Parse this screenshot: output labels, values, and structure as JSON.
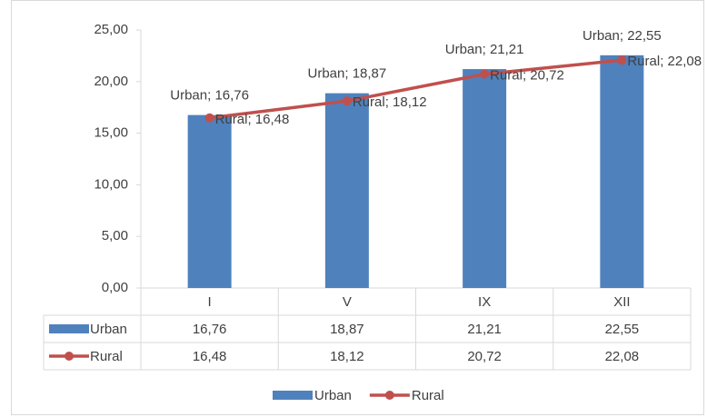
{
  "chart_data": {
    "type": "bar",
    "categories": [
      "I",
      "V",
      "IX",
      "XII"
    ],
    "series": [
      {
        "name": "Urban",
        "type": "bar",
        "color": "#4f81bd",
        "values": [
          16.76,
          18.87,
          21.21,
          22.55
        ],
        "value_labels": [
          "Urban; 16,76",
          "Urban; 18,87",
          "Urban; 21,21",
          "Urban; 22,55"
        ],
        "table_labels": [
          "16,76",
          "18,87",
          "21,21",
          "22,55"
        ]
      },
      {
        "name": "Rural",
        "type": "line",
        "color": "#c0504d",
        "values": [
          16.48,
          18.12,
          20.72,
          22.08
        ],
        "value_labels": [
          "Rural; 16,48",
          "Rural; 18,12",
          "Rural; 20,72",
          "Rural; 22,08"
        ],
        "table_labels": [
          "16,48",
          "18,12",
          "20,72",
          "22,08"
        ]
      }
    ],
    "ylim": [
      0,
      25
    ],
    "yticks": [
      {
        "value": 0,
        "label": "0,00"
      },
      {
        "value": 5,
        "label": "5,00"
      },
      {
        "value": 10,
        "label": "10,00"
      },
      {
        "value": 15,
        "label": "15,00"
      },
      {
        "value": 20,
        "label": "20,00"
      },
      {
        "value": 25,
        "label": "25,00"
      }
    ],
    "grid": false,
    "legend": "bottom"
  }
}
